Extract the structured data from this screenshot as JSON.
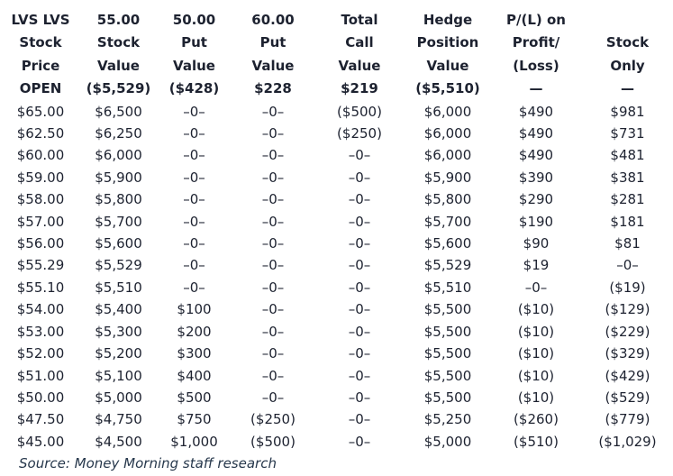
{
  "chart_data": {
    "type": "table",
    "title": "LVS hedge position value table",
    "columns": [
      "LVS LVS Stock Price",
      "55.00 Stock Value",
      "50.00 Put Value",
      "60.00 Put Value",
      "Total Call Value",
      "Hedge Position Value",
      "P/(L) on Profit/(Loss)",
      "Stock Only"
    ],
    "header_rows": [
      [
        "LVS LVS",
        "55.00",
        "50.00",
        "60.00",
        "Total",
        "Hedge",
        "P/(L) on",
        ""
      ],
      [
        "Stock",
        "Stock",
        "Put",
        "Put",
        "Call",
        "Position",
        "Profit/",
        "Stock"
      ],
      [
        "Price",
        "Value",
        "Value",
        "Value",
        "Value",
        "Value",
        "(Loss)",
        "Only"
      ],
      [
        "OPEN",
        "($5,529)",
        "($428)",
        "$228",
        "$219",
        "($5,510)",
        "—",
        "—"
      ]
    ],
    "rows": [
      [
        "$65.00",
        "$6,500",
        "–0–",
        "–0–",
        "($500)",
        "$6,000",
        "$490",
        "$981"
      ],
      [
        "$62.50",
        "$6,250",
        "–0–",
        "–0–",
        "($250)",
        "$6,000",
        "$490",
        "$731"
      ],
      [
        "$60.00",
        "$6,000",
        "–0–",
        "–0–",
        "–0–",
        "$6,000",
        "$490",
        "$481"
      ],
      [
        "$59.00",
        "$5,900",
        "–0–",
        "–0–",
        "–0–",
        "$5,900",
        "$390",
        "$381"
      ],
      [
        "$58.00",
        "$5,800",
        "–0–",
        "–0–",
        "–0–",
        "$5,800",
        "$290",
        "$281"
      ],
      [
        "$57.00",
        "$5,700",
        "–0–",
        "–0–",
        "–0–",
        "$5,700",
        "$190",
        "$181"
      ],
      [
        "$56.00",
        "$5,600",
        "–0–",
        "–0–",
        "–0–",
        "$5,600",
        "$90",
        "$81"
      ],
      [
        "$55.29",
        "$5,529",
        "–0–",
        "–0–",
        "–0–",
        "$5,529",
        "$19",
        "–0–"
      ],
      [
        "$55.10",
        "$5,510",
        "–0–",
        "–0–",
        "–0–",
        "$5,510",
        "–0–",
        "($19)"
      ],
      [
        "$54.00",
        "$5,400",
        "$100",
        "–0–",
        "–0–",
        "$5,500",
        "($10)",
        "($129)"
      ],
      [
        "$53.00",
        "$5,300",
        "$200",
        "–0–",
        "–0–",
        "$5,500",
        "($10)",
        "($229)"
      ],
      [
        "$52.00",
        "$5,200",
        "$300",
        "–0–",
        "–0–",
        "$5,500",
        "($10)",
        "($329)"
      ],
      [
        "$51.00",
        "$5,100",
        "$400",
        "–0–",
        "–0–",
        "$5,500",
        "($10)",
        "($429)"
      ],
      [
        "$50.00",
        "$5,000",
        "$500",
        "–0–",
        "–0–",
        "$5,500",
        "($10)",
        "($529)"
      ],
      [
        "$47.50",
        "$4,750",
        "$750",
        "($250)",
        "–0–",
        "$5,250",
        "($260)",
        "($779)"
      ],
      [
        "$45.00",
        "$4,500",
        "$1,000",
        "($500)",
        "–0–",
        "$5,000",
        "($510)",
        "($1,029)"
      ]
    ],
    "layout_hints": {
      "grid": "off",
      "cell_alignment": "center",
      "header_weight": "bold"
    }
  },
  "source_note": "Source: Money Morning staff research",
  "colors": {
    "background": "#ffffff",
    "table_text": "#1d2230",
    "source_text": "#27384c"
  }
}
